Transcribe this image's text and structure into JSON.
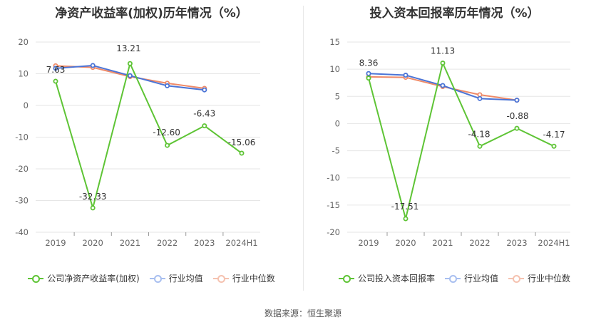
{
  "colors": {
    "company": "#5ec435",
    "avg": "#4b74d6",
    "median": "#ef8a68",
    "grid": "#e6e6e6",
    "axis_text": "#666666"
  },
  "source": "数据来源：恒生聚源",
  "chart_data": [
    {
      "type": "line",
      "title": "净资产收益率(加权)历年情况（%）",
      "categories": [
        "2019",
        "2020",
        "2021",
        "2022",
        "2023",
        "2024H1"
      ],
      "ylim": [
        -40,
        20
      ],
      "yticks": [
        20,
        10,
        0,
        -10,
        -20,
        -30,
        -40
      ],
      "grid": true,
      "legend_position": "bottom",
      "series": [
        {
          "name": "公司净资产收益率(加权)",
          "key": "company",
          "values": [
            7.63,
            -32.33,
            13.21,
            -12.6,
            -6.43,
            -15.06
          ],
          "labels": [
            "7.63",
            "-32.33",
            "13.21",
            "-12.60",
            "-6.43",
            "-15.06"
          ]
        },
        {
          "name": "行业均值",
          "key": "avg",
          "values": [
            11.7,
            12.6,
            9.4,
            6.2,
            4.9,
            null
          ]
        },
        {
          "name": "行业中位数",
          "key": "median",
          "values": [
            12.5,
            12.0,
            9.1,
            7.0,
            5.4,
            null
          ]
        }
      ]
    },
    {
      "type": "line",
      "title": "投入资本回报率历年情况（%）",
      "categories": [
        "2019",
        "2020",
        "2021",
        "2022",
        "2023",
        "2024H1"
      ],
      "ylim": [
        -20,
        15
      ],
      "yticks": [
        15,
        10,
        5,
        0,
        -5,
        -10,
        -15,
        -20
      ],
      "grid": true,
      "legend_position": "bottom",
      "series": [
        {
          "name": "公司投入资本回报率",
          "key": "company",
          "values": [
            8.36,
            -17.51,
            11.13,
            -4.18,
            -0.88,
            -4.17
          ],
          "labels": [
            "8.36",
            "-17.51",
            "11.13",
            "-4.18",
            "-0.88",
            "-4.17"
          ]
        },
        {
          "name": "行业均值",
          "key": "avg",
          "values": [
            9.2,
            8.9,
            7.0,
            4.6,
            4.3,
            null
          ]
        },
        {
          "name": "行业中位数",
          "key": "median",
          "values": [
            8.6,
            8.5,
            6.8,
            5.3,
            4.3,
            null
          ]
        }
      ]
    }
  ]
}
